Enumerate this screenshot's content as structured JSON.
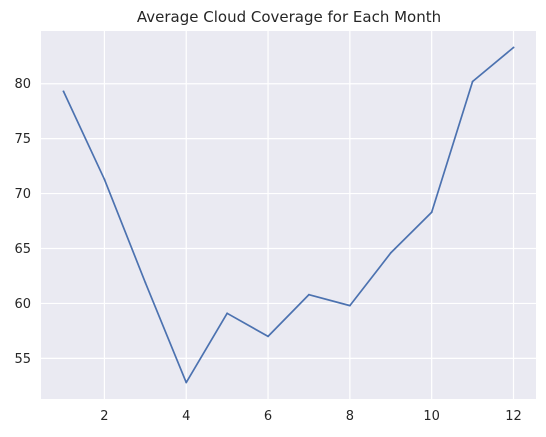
{
  "chart_data": {
    "type": "line",
    "title": "Average Cloud Coverage for Each Month",
    "xlabel": "",
    "ylabel": "",
    "x": [
      1,
      2,
      3,
      4,
      5,
      6,
      7,
      8,
      9,
      10,
      11,
      12
    ],
    "series": [
      {
        "values": [
          79.3,
          71.3,
          61.9,
          52.8,
          59.1,
          57.0,
          60.8,
          59.8,
          64.6,
          68.3,
          80.2,
          83.3
        ]
      }
    ],
    "xlim": [
      0.45,
      12.55
    ],
    "ylim": [
      51.3,
      84.8
    ],
    "x_ticks": [
      2,
      4,
      6,
      8,
      10,
      12
    ],
    "y_ticks": [
      55,
      60,
      65,
      70,
      75,
      80
    ],
    "grid": true,
    "legend": "none",
    "colors": {
      "line": "#4c72b0",
      "plot_background": "#eaeaf2",
      "grid": "#ffffff",
      "text": "#262626"
    }
  }
}
